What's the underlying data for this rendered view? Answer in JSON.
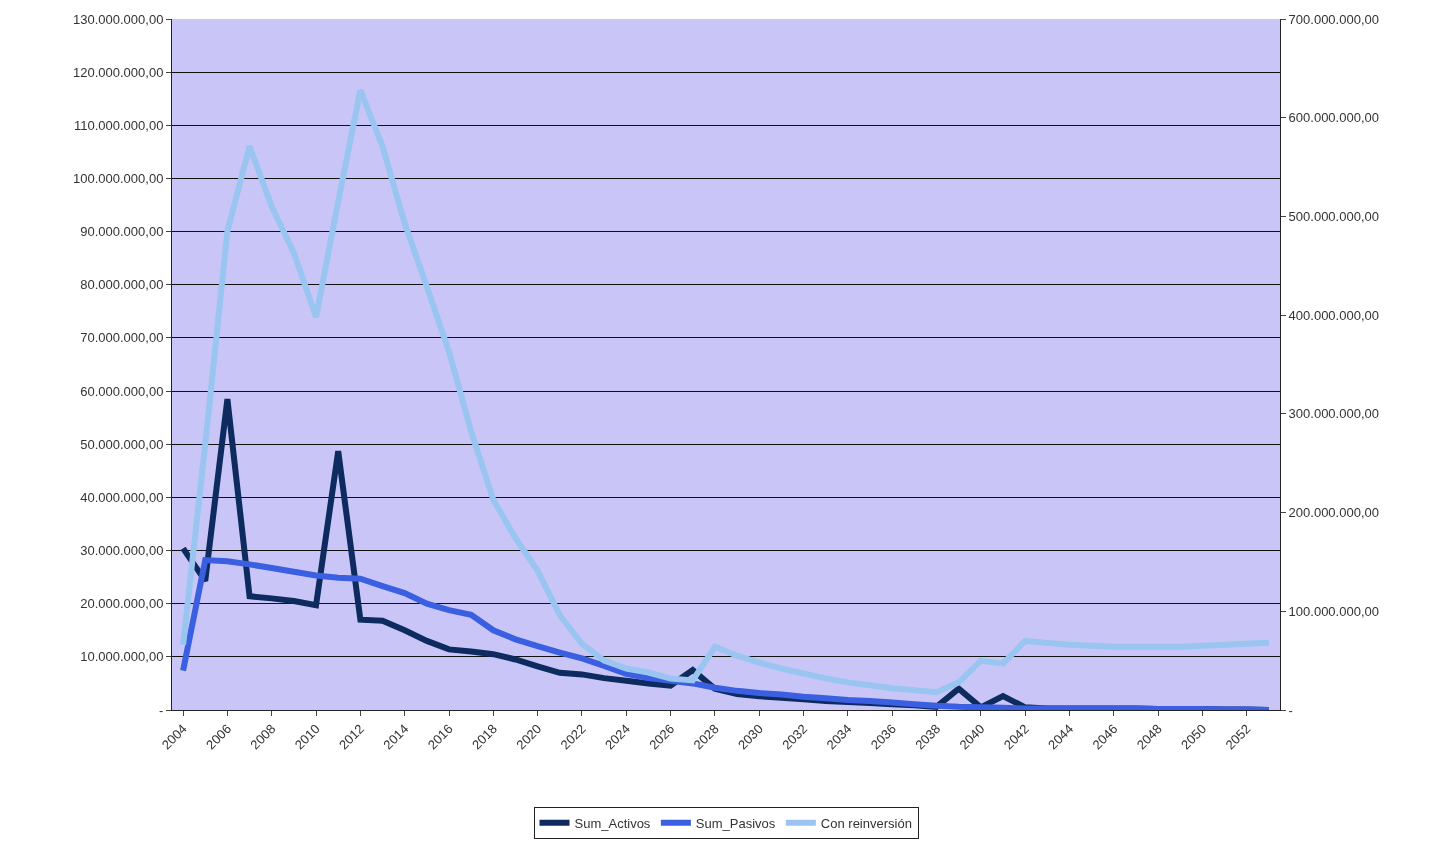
{
  "chart_data": {
    "type": "line",
    "categories": [
      "2004",
      null,
      "2006",
      null,
      "2008",
      null,
      "2010",
      null,
      "2012",
      null,
      "2014",
      null,
      "2016",
      null,
      "2018",
      null,
      "2020",
      null,
      "2022",
      null,
      "2024",
      null,
      "2026",
      null,
      "2028",
      null,
      "2030",
      null,
      "2032",
      null,
      "2034",
      null,
      "2036",
      null,
      "2038",
      null,
      "2040",
      null,
      "2042",
      null,
      "2044",
      null,
      "2046",
      null,
      "2048",
      null,
      "2050",
      null,
      "2052",
      null
    ],
    "series": [
      {
        "name": "Sum_Activos",
        "color": "#0d2b5e",
        "values": [
          30400000.0,
          24300000.0,
          58500000.0,
          21400000.0,
          21000000.0,
          20500000.0,
          19700000.0,
          48700000.0,
          17000000.0,
          16800000.0,
          15000000.0,
          13000000.0,
          11400000.0,
          11000000.0,
          10500000.0,
          9500000.0,
          8200000.0,
          7000000.0,
          6700000.0,
          6000000.0,
          5500000.0,
          5000000.0,
          4600000.0,
          7500000.0,
          4000000.0,
          3000000.0,
          2600000.0,
          2300000.0,
          2000000.0,
          1700000.0,
          1500000.0,
          1300000.0,
          1100000.0,
          900000.0,
          600000.0,
          4000000.0,
          500000.0,
          2600000.0,
          500000.0,
          300000.0,
          300000.0,
          300000.0,
          300000.0,
          300000.0,
          200000.0,
          200000.0,
          200000.0,
          100000.0,
          100000.0,
          0
        ]
      },
      {
        "name": "Sum_Pasivos",
        "color": "#3a5fe0",
        "values": [
          7400000.0,
          28200000.0,
          28000000.0,
          27400000.0,
          26700000.0,
          26000000.0,
          25300000.0,
          24900000.0,
          24700000.0,
          23300000.0,
          22000000.0,
          20000000.0,
          18800000.0,
          17900000.0,
          15000000.0,
          13300000.0,
          12000000.0,
          10800000.0,
          9700000.0,
          8300000.0,
          6800000.0,
          6000000.0,
          5500000.0,
          5000000.0,
          4200000.0,
          3600000.0,
          3200000.0,
          2900000.0,
          2500000.0,
          2200000.0,
          1900000.0,
          1700000.0,
          1400000.0,
          1100000.0,
          800000.0,
          600000.0,
          500000.0,
          400000.0,
          300000.0,
          300000.0,
          300000.0,
          300000.0,
          300000.0,
          300000.0,
          200000.0,
          200000.0,
          200000.0,
          100000.0,
          100000.0,
          0
        ]
      },
      {
        "name": "Con reinversión",
        "color": "#99c5f0",
        "axis": "y2",
        "values": [
          66000000.0,
          269000000.0,
          485000000.0,
          571000000.0,
          510000000.0,
          463000000.0,
          398000000.0,
          515000000.0,
          628000000.0,
          571000000.0,
          493000000.0,
          429000000.0,
          363000000.0,
          282000000.0,
          213000000.0,
          174000000.0,
          141000000.0,
          96000000.0,
          67000000.0,
          50000000.0,
          42000000.0,
          38000000.0,
          32000000.0,
          30000000.0,
          64000000.0,
          55000000.0,
          48000000.0,
          42000000.0,
          37000000.0,
          32000000.0,
          28000000.0,
          25000000.0,
          22000000.0,
          20000000.0,
          18000000.0,
          28000000.0,
          50000000.0,
          47000000.0,
          70000000.0,
          68000000.0,
          66000000.0,
          65000000.0,
          64000000.0,
          64000000.0,
          64000000.0,
          64000000.0,
          65000000.0,
          66000000.0,
          67000000.0,
          68000000.0
        ]
      }
    ],
    "ylim": [
      0,
      130000000
    ],
    "yticks": [
      {
        "value": 0,
        "label": "-"
      },
      {
        "value": 10000000,
        "label": "10.000.000,00"
      },
      {
        "value": 20000000,
        "label": "20.000.000,00"
      },
      {
        "value": 30000000,
        "label": "30.000.000,00"
      },
      {
        "value": 40000000,
        "label": "40.000.000,00"
      },
      {
        "value": 50000000,
        "label": "50.000.000,00"
      },
      {
        "value": 60000000,
        "label": "60.000.000,00"
      },
      {
        "value": 70000000,
        "label": "70.000.000,00"
      },
      {
        "value": 80000000,
        "label": "80.000.000,00"
      },
      {
        "value": 90000000,
        "label": "90.000.000,00"
      },
      {
        "value": 100000000,
        "label": "100.000.000,00"
      },
      {
        "value": 110000000,
        "label": "110.000.000,00"
      },
      {
        "value": 120000000,
        "label": "120.000.000,00"
      },
      {
        "value": 130000000,
        "label": "130.000.000,00"
      }
    ],
    "y2lim": [
      0,
      700000000
    ],
    "y2ticks": [
      {
        "value": 0,
        "label": "-"
      },
      {
        "value": 100000000,
        "label": "100.000.000,00"
      },
      {
        "value": 200000000,
        "label": "200.000.000,00"
      },
      {
        "value": 300000000,
        "label": "300.000.000,00"
      },
      {
        "value": 400000000,
        "label": "400.000.000,00"
      },
      {
        "value": 500000000,
        "label": "500.000.000,00"
      },
      {
        "value": 600000000,
        "label": "600.000.000,00"
      },
      {
        "value": 700000000,
        "label": "700.000.000,00"
      }
    ],
    "grid": "y",
    "legend": "bottom",
    "marker": "none",
    "line_style": "solid"
  }
}
